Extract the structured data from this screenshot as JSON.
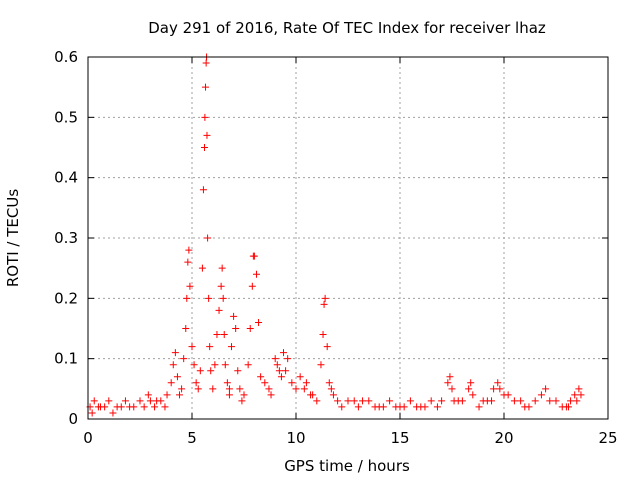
{
  "chart_data": {
    "type": "scatter",
    "title": "Day 291 of 2016, Rate Of TEC Index for receiver lhaz",
    "xlabel": "GPS time / hours",
    "ylabel": "ROTI / TECUs",
    "xlim": [
      0,
      25
    ],
    "ylim": [
      0,
      0.6
    ],
    "grid": true,
    "marker": "+",
    "color": "#ff0000",
    "x_ticks": [
      0,
      5,
      10,
      15,
      20,
      25
    ],
    "x_tick_labels": [
      "0",
      "5",
      "10",
      "15",
      "20",
      "25"
    ],
    "y_ticks": [
      0,
      0.1,
      0.2,
      0.3,
      0.4,
      0.5,
      0.6
    ],
    "y_tick_labels": [
      "0",
      "0.1",
      "0.2",
      "0.3",
      "0.4",
      "0.5",
      "0.6"
    ],
    "series": [
      {
        "name": "ROTI",
        "x": [
          0.1,
          0.3,
          0.5,
          0.8,
          1.2,
          1.6,
          2.0,
          2.5,
          2.9,
          3.0,
          3.2,
          3.5,
          3.8,
          4.0,
          4.1,
          4.2,
          4.3,
          4.5,
          4.6,
          4.7,
          4.75,
          4.8,
          4.85,
          4.9,
          5.0,
          5.2,
          5.4,
          5.5,
          5.55,
          5.6,
          5.62,
          5.65,
          5.68,
          5.7,
          5.72,
          5.75,
          5.8,
          5.85,
          5.9,
          6.0,
          6.1,
          6.2,
          6.3,
          6.4,
          6.45,
          6.5,
          6.55,
          6.6,
          6.7,
          6.8,
          6.9,
          7.0,
          7.1,
          7.2,
          7.3,
          7.5,
          7.7,
          7.8,
          7.9,
          7.95,
          8.0,
          8.1,
          8.2,
          8.3,
          8.5,
          8.8,
          9.0,
          9.2,
          9.4,
          9.6,
          9.8,
          10.0,
          10.2,
          10.5,
          10.8,
          11.0,
          11.2,
          11.3,
          11.35,
          11.4,
          11.5,
          11.6,
          11.7,
          11.8,
          12.0,
          12.5,
          13.0,
          13.5,
          14.0,
          14.5,
          15.0,
          15.5,
          16.0,
          16.5,
          17.0,
          17.3,
          17.4,
          17.5,
          17.8,
          18.0,
          18.3,
          18.4,
          18.5,
          19.0,
          19.4,
          19.5,
          19.7,
          19.8,
          20.0,
          20.2,
          20.5,
          21.0,
          21.5,
          21.8,
          22.0,
          22.5,
          23.0,
          23.2,
          23.4,
          23.6,
          23.7,
          0.2,
          0.6,
          1.0,
          1.4,
          1.8,
          2.2,
          2.7,
          3.3,
          3.7,
          4.4,
          5.1,
          5.3,
          6.8,
          7.4,
          8.7,
          9.1,
          9.3,
          9.5,
          10.4,
          10.7,
          12.2,
          12.8,
          13.2,
          13.8,
          14.2,
          14.8,
          15.2,
          15.8,
          16.2,
          16.8,
          17.6,
          18.8,
          19.2,
          20.8,
          21.2,
          22.2,
          22.8,
          23.1,
          23.5
        ],
        "y": [
          0.02,
          0.03,
          0.02,
          0.02,
          0.01,
          0.02,
          0.02,
          0.03,
          0.04,
          0.03,
          0.02,
          0.03,
          0.04,
          0.06,
          0.09,
          0.11,
          0.07,
          0.05,
          0.1,
          0.15,
          0.2,
          0.26,
          0.28,
          0.22,
          0.12,
          0.06,
          0.08,
          0.25,
          0.38,
          0.45,
          0.5,
          0.55,
          0.59,
          0.6,
          0.47,
          0.3,
          0.2,
          0.12,
          0.08,
          0.05,
          0.09,
          0.14,
          0.18,
          0.22,
          0.25,
          0.2,
          0.14,
          0.09,
          0.06,
          0.04,
          0.12,
          0.17,
          0.15,
          0.08,
          0.05,
          0.04,
          0.09,
          0.15,
          0.22,
          0.27,
          0.27,
          0.24,
          0.16,
          0.07,
          0.06,
          0.04,
          0.1,
          0.08,
          0.11,
          0.1,
          0.06,
          0.05,
          0.07,
          0.06,
          0.04,
          0.03,
          0.09,
          0.14,
          0.19,
          0.2,
          0.12,
          0.06,
          0.05,
          0.04,
          0.03,
          0.03,
          0.02,
          0.03,
          0.02,
          0.03,
          0.02,
          0.03,
          0.02,
          0.03,
          0.03,
          0.06,
          0.07,
          0.05,
          0.03,
          0.03,
          0.05,
          0.06,
          0.04,
          0.03,
          0.03,
          0.05,
          0.06,
          0.05,
          0.04,
          0.04,
          0.03,
          0.02,
          0.03,
          0.04,
          0.05,
          0.03,
          0.02,
          0.03,
          0.04,
          0.05,
          0.04,
          0.01,
          0.02,
          0.03,
          0.02,
          0.03,
          0.02,
          0.02,
          0.03,
          0.02,
          0.04,
          0.09,
          0.05,
          0.05,
          0.03,
          0.05,
          0.09,
          0.07,
          0.08,
          0.05,
          0.04,
          0.02,
          0.03,
          0.03,
          0.02,
          0.02,
          0.02,
          0.02,
          0.02,
          0.02,
          0.02,
          0.03,
          0.02,
          0.03,
          0.03,
          0.02,
          0.03,
          0.02,
          0.02,
          0.03
        ]
      }
    ]
  }
}
